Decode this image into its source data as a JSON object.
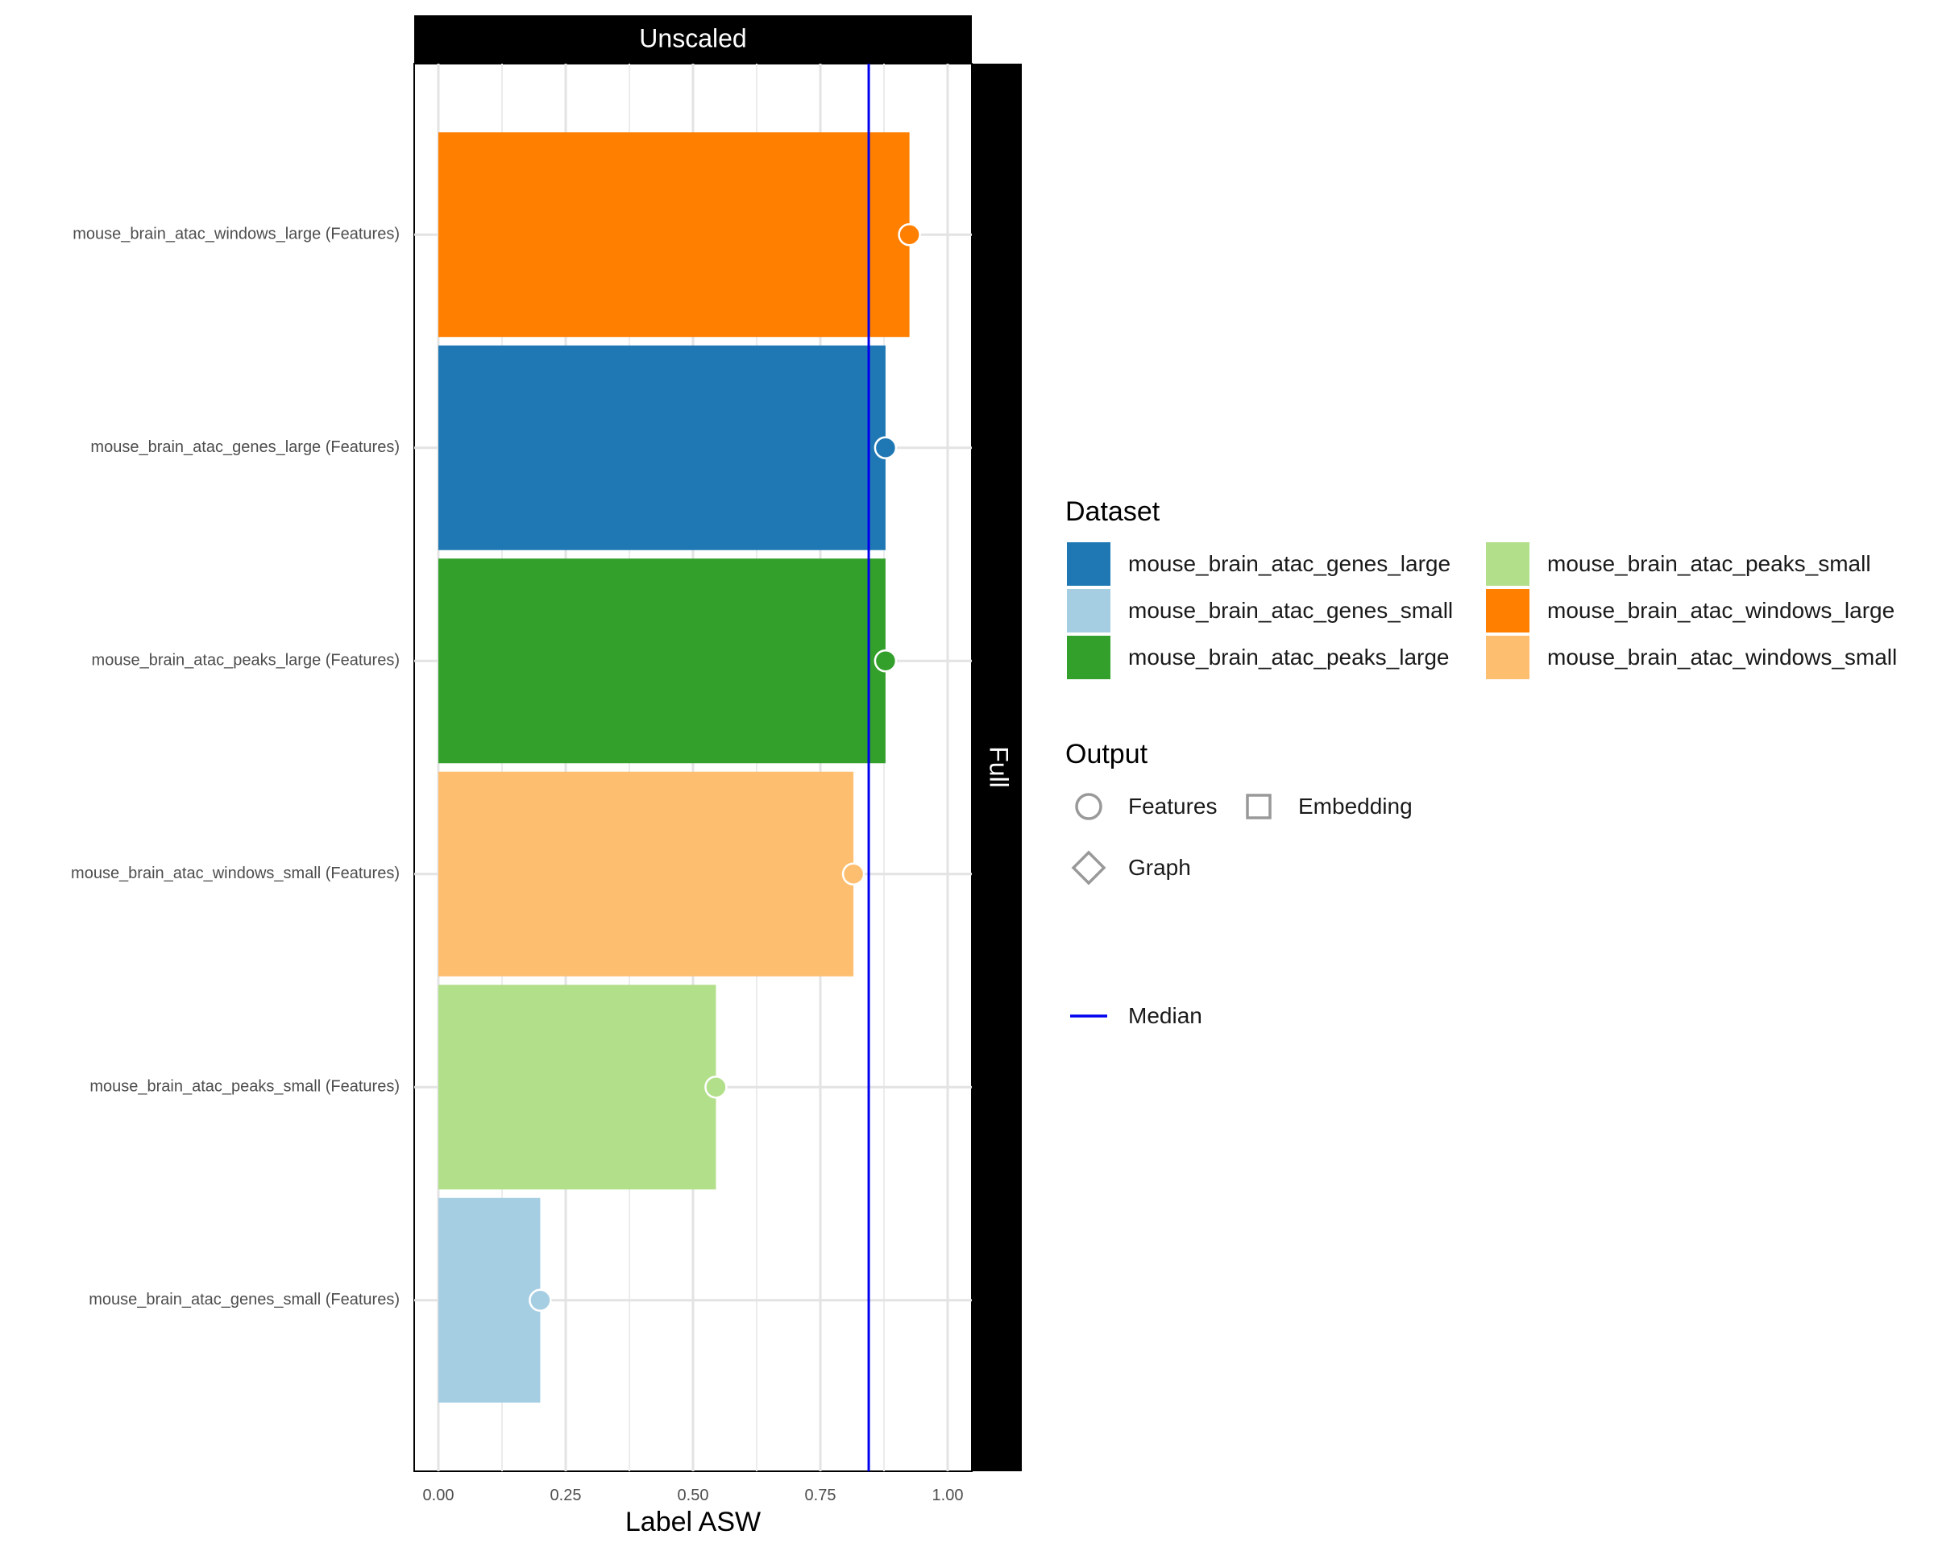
{
  "chart_data": {
    "type": "bar",
    "facet_top": "Unscaled",
    "facet_right": "Full",
    "xlabel": "Label ASW",
    "ylabel": "",
    "xlim": [
      -0.05,
      1.05
    ],
    "x_ticks": [
      0.0,
      0.25,
      0.5,
      0.75,
      1.0
    ],
    "x_tick_labels": [
      "0.00",
      "0.25",
      "0.50",
      "0.75",
      "1.00"
    ],
    "grid": true,
    "median": 0.845,
    "categories": [
      "mouse_brain_atac_windows_large (Features)",
      "mouse_brain_atac_genes_large (Features)",
      "mouse_brain_atac_peaks_large (Features)",
      "mouse_brain_atac_windows_small (Features)",
      "mouse_brain_atac_peaks_small (Features)",
      "mouse_brain_atac_genes_small (Features)"
    ],
    "values": [
      0.925,
      0.878,
      0.878,
      0.815,
      0.545,
      0.2
    ],
    "dataset": [
      "mouse_brain_atac_windows_large",
      "mouse_brain_atac_genes_large",
      "mouse_brain_atac_peaks_large",
      "mouse_brain_atac_windows_small",
      "mouse_brain_atac_peaks_small",
      "mouse_brain_atac_genes_small"
    ],
    "output": [
      "Features",
      "Features",
      "Features",
      "Features",
      "Features",
      "Features"
    ]
  },
  "legend": {
    "dataset_title": "Dataset",
    "datasets": [
      {
        "label": "mouse_brain_atac_genes_large",
        "color": "#1f78b4"
      },
      {
        "label": "mouse_brain_atac_genes_small",
        "color": "#a6cee3"
      },
      {
        "label": "mouse_brain_atac_peaks_large",
        "color": "#33a02c"
      },
      {
        "label": "mouse_brain_atac_peaks_small",
        "color": "#b2df8a"
      },
      {
        "label": "mouse_brain_atac_windows_large",
        "color": "#ff7f00"
      },
      {
        "label": "mouse_brain_atac_windows_small",
        "color": "#fdbf6f"
      }
    ],
    "output_title": "Output",
    "outputs": [
      {
        "label": "Features",
        "icon": "circle-icon"
      },
      {
        "label": "Embedding",
        "icon": "square-icon"
      },
      {
        "label": "Graph",
        "icon": "diamond-icon"
      }
    ],
    "median_label": "Median",
    "median_color": "#0000ee"
  }
}
